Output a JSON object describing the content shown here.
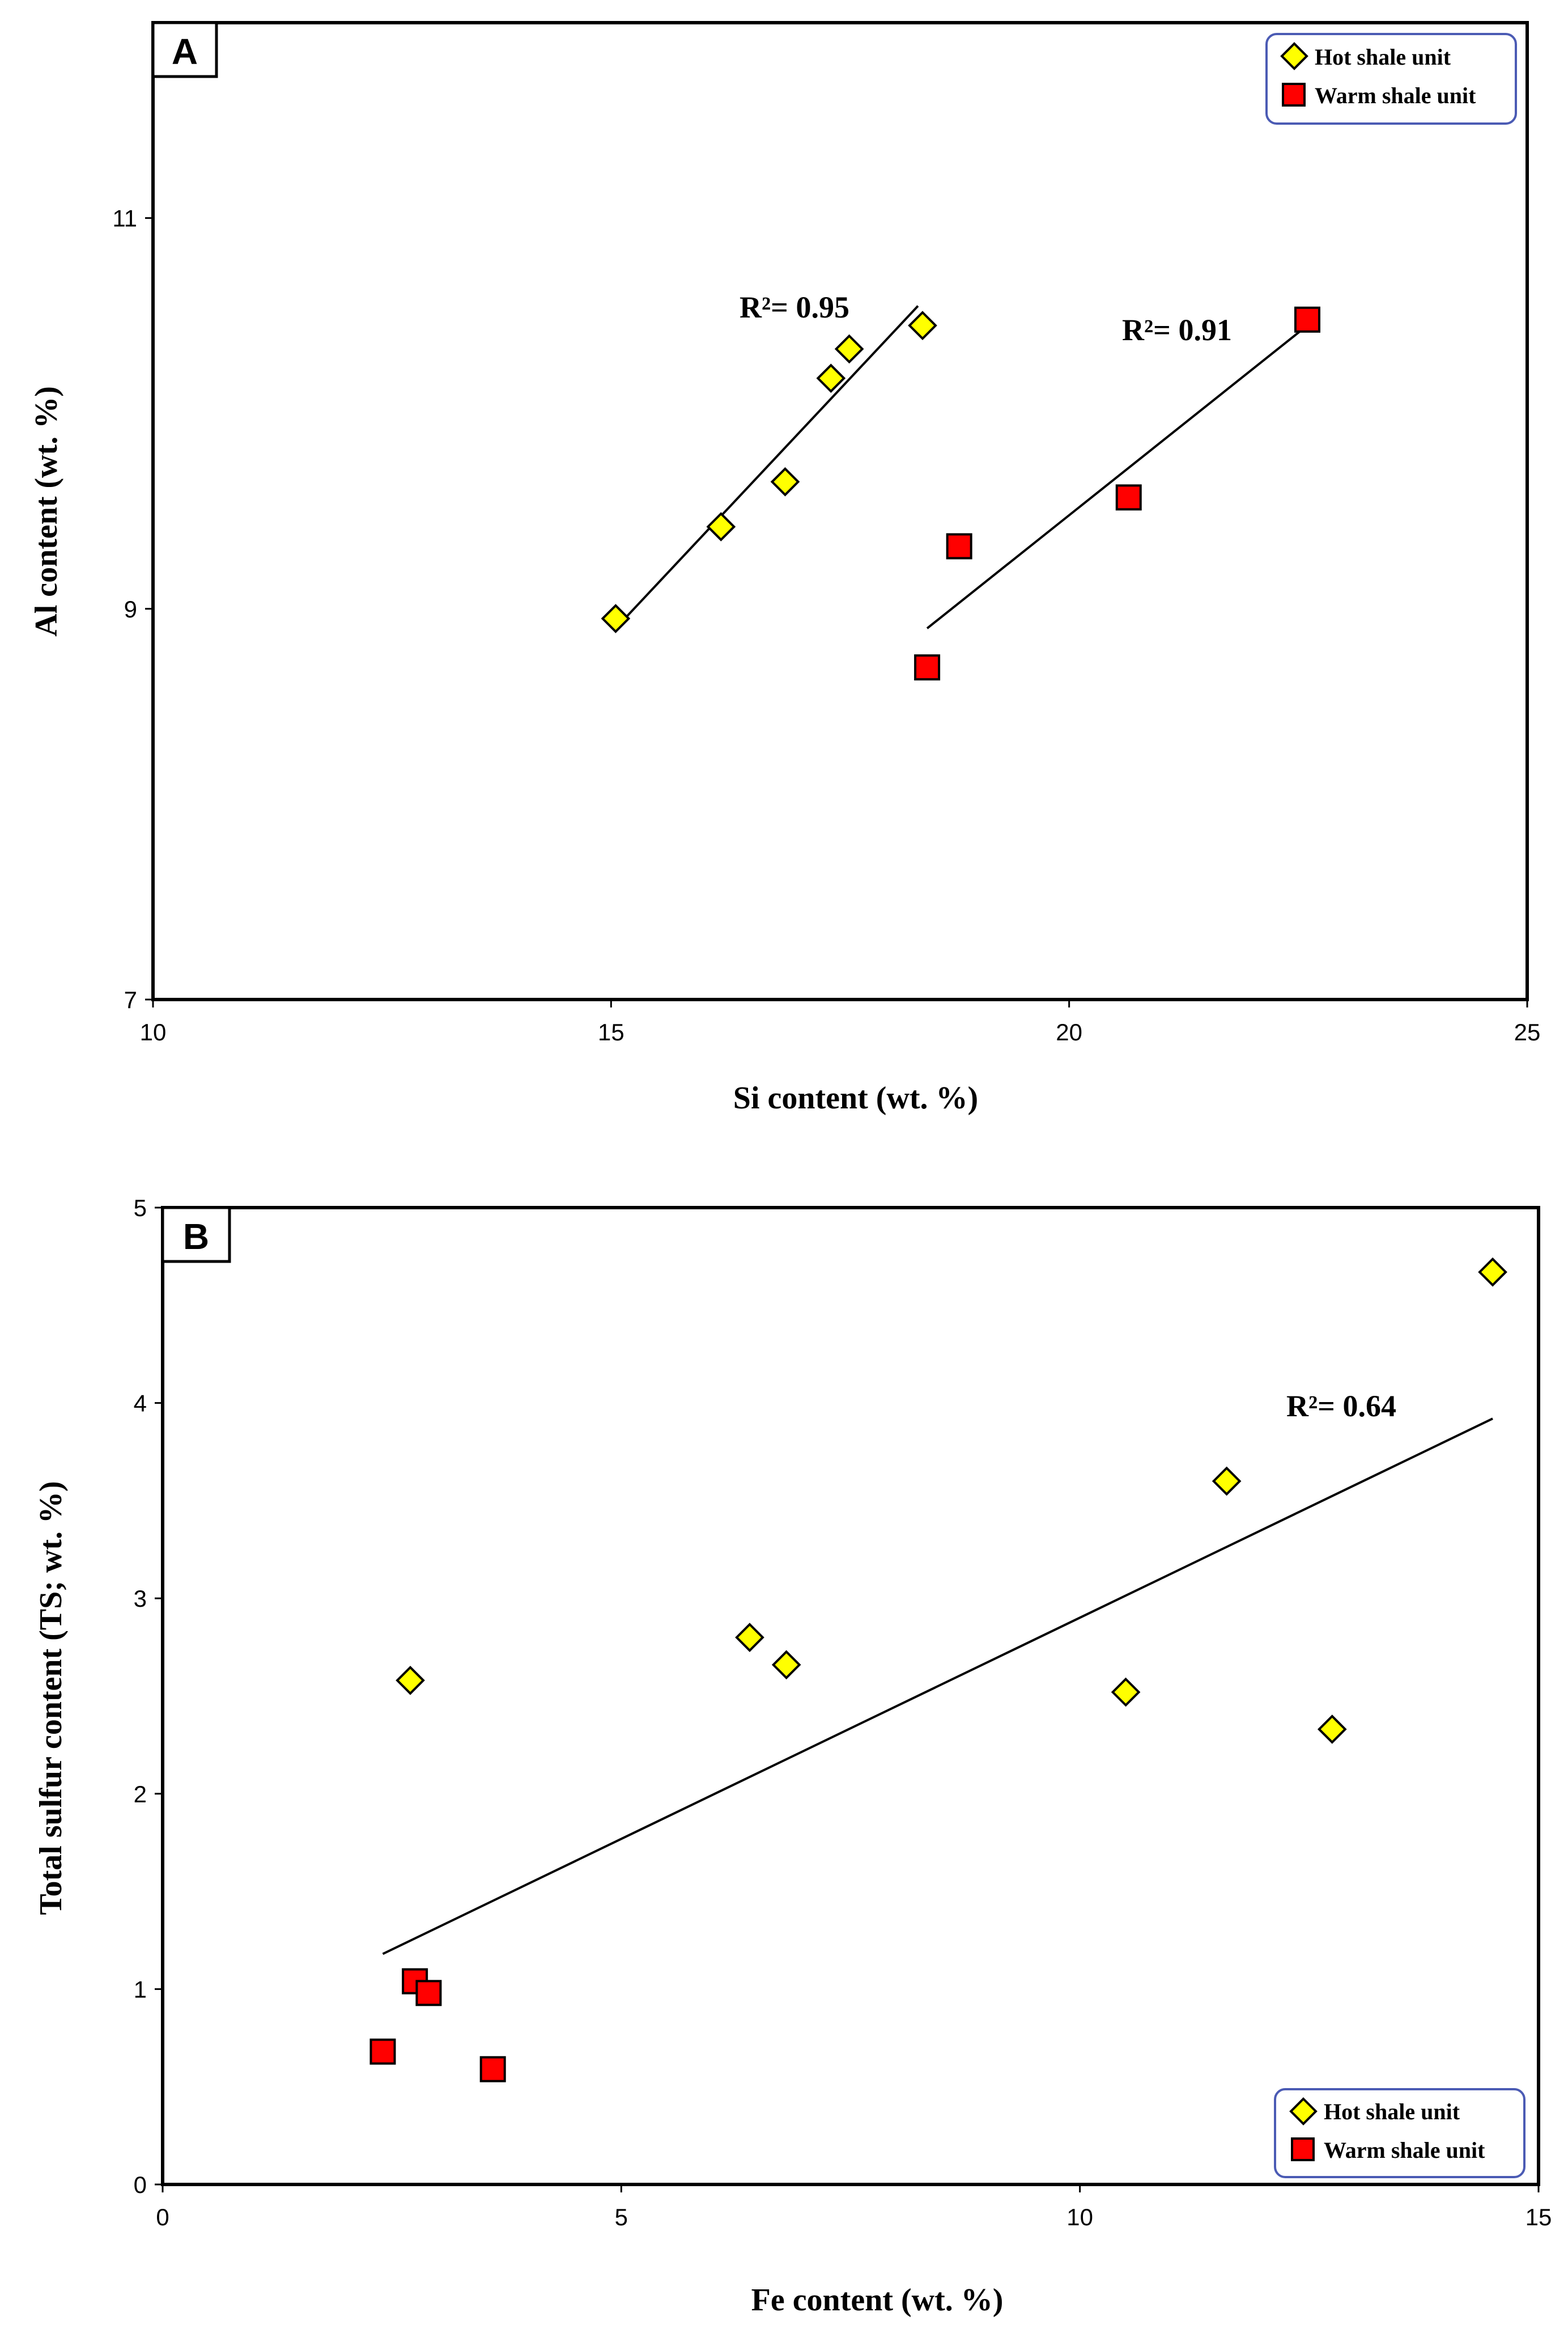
{
  "chart_data": [
    {
      "type": "scatter",
      "panel_label": "A",
      "xlabel": "Si content (wt. %)",
      "ylabel": "Al content (wt. %)",
      "xlim": [
        10,
        25
      ],
      "ylim": [
        7,
        12
      ],
      "xticks": [
        10,
        15,
        20,
        25
      ],
      "yticks": [
        7,
        9,
        11
      ],
      "legend_position": "top-right",
      "grid": false,
      "series": [
        {
          "name": "Hot shale unit",
          "marker": "diamond",
          "color": "#ffff00",
          "x": [
            15.05,
            16.2,
            16.9,
            17.4,
            17.6,
            18.4
          ],
          "y": [
            8.95,
            9.42,
            9.65,
            10.18,
            10.33,
            10.45
          ],
          "trendline": {
            "x": [
              15.05,
              18.35
            ],
            "y": [
              8.9,
              10.55
            ]
          },
          "r2_label": "R²= 0.95"
        },
        {
          "name": "Warm shale unit",
          "marker": "square",
          "color": "#ff0000",
          "x": [
            18.45,
            18.8,
            20.65,
            22.6
          ],
          "y": [
            8.7,
            9.32,
            9.57,
            10.48
          ],
          "trendline": {
            "x": [
              18.45,
              22.6
            ],
            "y": [
              8.9,
              10.45
            ]
          },
          "r2_label": "R²= 0.91"
        }
      ]
    },
    {
      "type": "scatter",
      "panel_label": "B",
      "xlabel": "Fe content (wt. %)",
      "ylabel": "Total sulfur content (TS; wt. %)",
      "xlim": [
        0,
        15
      ],
      "ylim": [
        0,
        5
      ],
      "xticks": [
        0,
        5,
        10,
        15
      ],
      "yticks": [
        0,
        1,
        2,
        3,
        4,
        5
      ],
      "legend_position": "bottom-right",
      "grid": false,
      "series": [
        {
          "name": "Hot shale unit",
          "marker": "diamond",
          "color": "#ffff00",
          "x": [
            2.7,
            6.4,
            6.8,
            10.5,
            11.6,
            12.75,
            14.5
          ],
          "y": [
            2.58,
            2.8,
            2.66,
            2.52,
            3.6,
            2.33,
            4.67
          ]
        },
        {
          "name": "Warm shale unit",
          "marker": "square",
          "color": "#ff0000",
          "x": [
            2.4,
            2.75,
            2.9,
            3.6
          ],
          "y": [
            0.68,
            1.04,
            0.98,
            0.59
          ]
        }
      ],
      "trendline": {
        "x": [
          2.4,
          14.5
        ],
        "y": [
          1.18,
          3.92
        ]
      },
      "r2_label": "R²= 0.64"
    }
  ]
}
